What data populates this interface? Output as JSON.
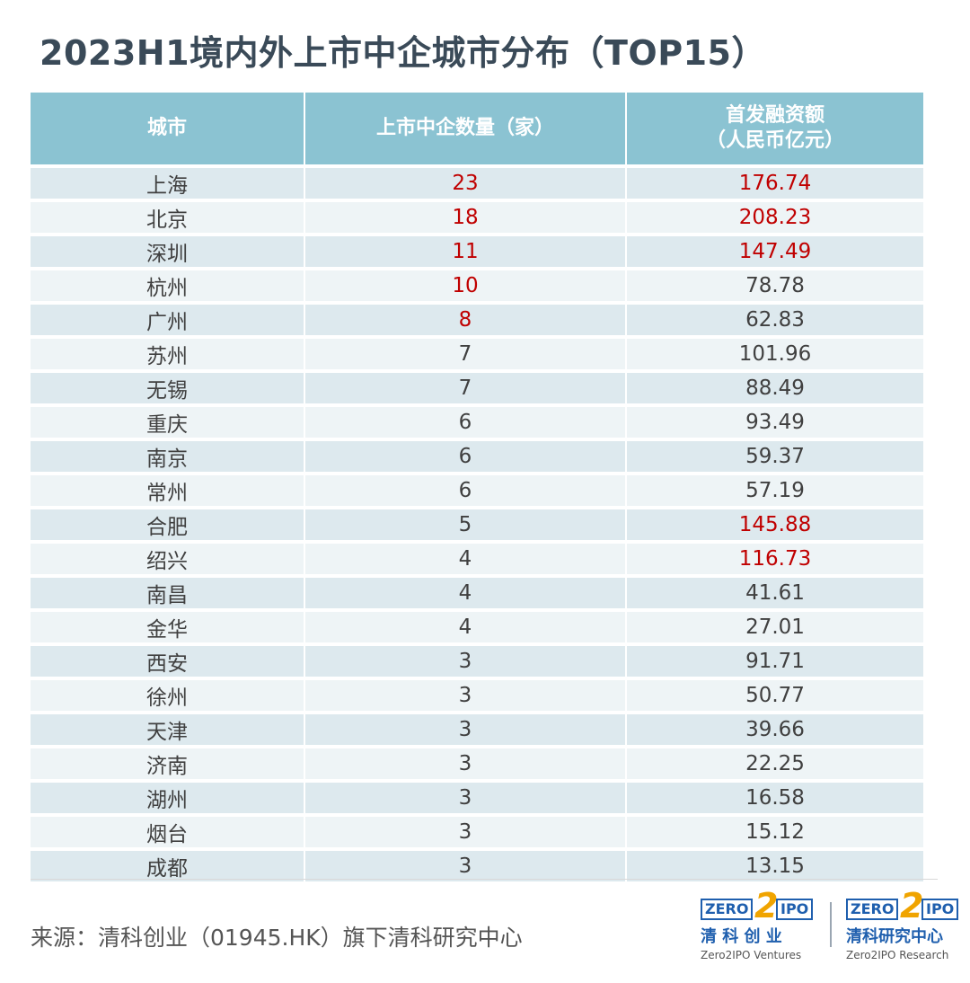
{
  "chart_data": {
    "type": "table",
    "title": "2023H1境内外上市中企城市分布（TOP15）",
    "columns": [
      "城市",
      "上市中企数量（家）",
      "首发融资额\n（人民币亿元）"
    ],
    "rows": [
      {
        "city": "上海",
        "count": "23",
        "amount": "176.74",
        "count_red": true,
        "amount_red": true
      },
      {
        "city": "北京",
        "count": "18",
        "amount": "208.23",
        "count_red": true,
        "amount_red": true
      },
      {
        "city": "深圳",
        "count": "11",
        "amount": "147.49",
        "count_red": true,
        "amount_red": true
      },
      {
        "city": "杭州",
        "count": "10",
        "amount": "78.78",
        "count_red": true,
        "amount_red": false
      },
      {
        "city": "广州",
        "count": "8",
        "amount": "62.83",
        "count_red": true,
        "amount_red": false
      },
      {
        "city": "苏州",
        "count": "7",
        "amount": "101.96",
        "count_red": false,
        "amount_red": false
      },
      {
        "city": "无锡",
        "count": "7",
        "amount": "88.49",
        "count_red": false,
        "amount_red": false
      },
      {
        "city": "重庆",
        "count": "6",
        "amount": "93.49",
        "count_red": false,
        "amount_red": false
      },
      {
        "city": "南京",
        "count": "6",
        "amount": "59.37",
        "count_red": false,
        "amount_red": false
      },
      {
        "city": "常州",
        "count": "6",
        "amount": "57.19",
        "count_red": false,
        "amount_red": false
      },
      {
        "city": "合肥",
        "count": "5",
        "amount": "145.88",
        "count_red": false,
        "amount_red": true
      },
      {
        "city": "绍兴",
        "count": "4",
        "amount": "116.73",
        "count_red": false,
        "amount_red": true
      },
      {
        "city": "南昌",
        "count": "4",
        "amount": "41.61",
        "count_red": false,
        "amount_red": false
      },
      {
        "city": "金华",
        "count": "4",
        "amount": "27.01",
        "count_red": false,
        "amount_red": false
      },
      {
        "city": "西安",
        "count": "3",
        "amount": "91.71",
        "count_red": false,
        "amount_red": false
      },
      {
        "city": "徐州",
        "count": "3",
        "amount": "50.77",
        "count_red": false,
        "amount_red": false
      },
      {
        "city": "天津",
        "count": "3",
        "amount": "39.66",
        "count_red": false,
        "amount_red": false
      },
      {
        "city": "济南",
        "count": "3",
        "amount": "22.25",
        "count_red": false,
        "amount_red": false
      },
      {
        "city": "湖州",
        "count": "3",
        "amount": "16.58",
        "count_red": false,
        "amount_red": false
      },
      {
        "city": "烟台",
        "count": "3",
        "amount": "15.12",
        "count_red": false,
        "amount_red": false
      },
      {
        "city": "成都",
        "count": "3",
        "amount": "13.15",
        "count_red": false,
        "amount_red": false
      }
    ]
  },
  "colors": {
    "title": "#3a4a58",
    "header_bg": "#8bc3d2",
    "row_odd": "#dde9ee",
    "row_even": "#eef4f6",
    "highlight": "#c00000",
    "logo_blue": "#1f5fae",
    "logo_orange": "#f0a400"
  },
  "footer": {
    "source": "来源：清科创业（01945.HK）旗下清科研究中心"
  },
  "logos": [
    {
      "box_left": "ZERO",
      "numeral": "2",
      "box_right": "IPO",
      "cn": "清 科 创 业",
      "en": "Zero2IPO Ventures"
    },
    {
      "box_left": "ZERO",
      "numeral": "2",
      "box_right": "IPO",
      "cn": "清科研究中心",
      "en": "Zero2IPO Research"
    }
  ]
}
